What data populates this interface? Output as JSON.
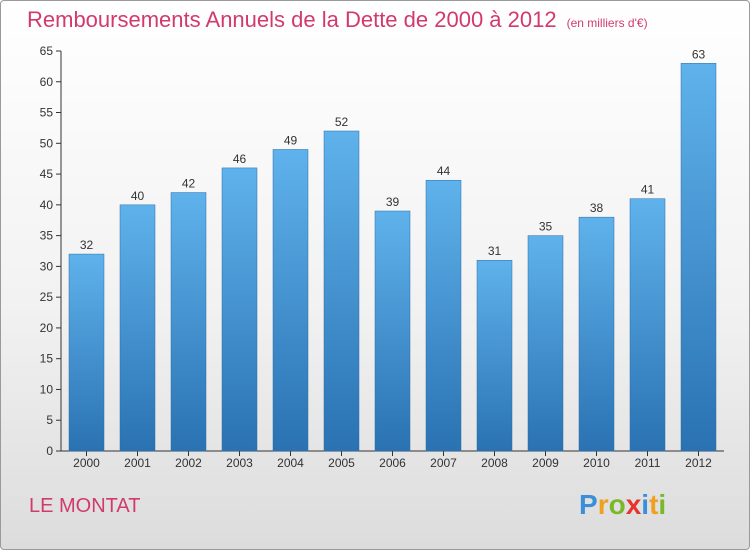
{
  "title": "Remboursements Annuels de la Dette de 2000 à 2012",
  "unit": "(en milliers d'€)",
  "place": "LE MONTAT",
  "brand": {
    "letters": [
      "P",
      "r",
      "o",
      "x",
      "i",
      "t",
      "i"
    ],
    "colors": [
      "#3a8fd8",
      "#f0a020",
      "#7ab829",
      "#e8352c",
      "#3a8fd8",
      "#f0a020",
      "#7ab829"
    ]
  },
  "colors": {
    "bar_top": "#5fb2ec",
    "bar_bottom": "#2a72b2",
    "title": "#d23a6d"
  },
  "chart_data": {
    "type": "bar",
    "title": "Remboursements Annuels de la Dette de 2000 à 2012",
    "xlabel": "",
    "ylabel": "(en milliers d'€)",
    "categories": [
      "2000",
      "2001",
      "2002",
      "2003",
      "2004",
      "2005",
      "2006",
      "2007",
      "2008",
      "2009",
      "2010",
      "2011",
      "2012"
    ],
    "values": [
      32,
      40,
      42,
      46,
      49,
      52,
      39,
      44,
      31,
      35,
      38,
      41,
      63
    ],
    "ylim": [
      0,
      65
    ],
    "yticks": [
      0,
      5,
      10,
      15,
      20,
      25,
      30,
      35,
      40,
      45,
      50,
      55,
      60,
      65
    ],
    "grid": false,
    "legend": "none"
  }
}
